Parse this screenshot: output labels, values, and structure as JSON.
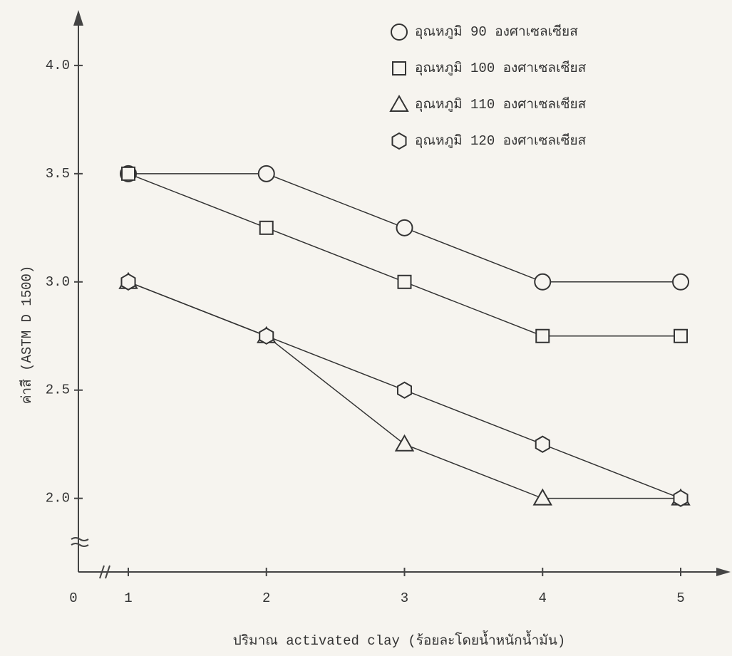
{
  "chart_data": {
    "type": "line",
    "x_label": "ปริมาณ activated clay (ร้อยละโดยน้ำหนักน้ำมัน)",
    "y_label": "ค่าสี (ASTM D 1500)",
    "x_origin_label": "0",
    "x": [
      1,
      2,
      3,
      4,
      5
    ],
    "xlim": [
      0.6,
      5.4
    ],
    "xticks": [
      1,
      2,
      3,
      4,
      5
    ],
    "ylim": [
      1.66,
      4.23
    ],
    "yticks": [
      {
        "value": 2,
        "label": "2.0"
      },
      2.5,
      {
        "value": 3,
        "label": "3.0"
      },
      3.5,
      {
        "value": 4,
        "label": "4.0"
      }
    ],
    "legend": "top-right",
    "series": [
      {
        "name": "อุณหภูมิ 90 องศาเซลเซียส",
        "color": "#333333",
        "marker": "circle",
        "values": [
          3.5,
          3.5,
          3.25,
          3.0,
          3.0
        ]
      },
      {
        "name": "อุณหภูมิ 100 องศาเซลเซียส",
        "color": "#333333",
        "marker": "square",
        "values": [
          3.5,
          3.25,
          3.0,
          2.75,
          2.75
        ]
      },
      {
        "name": "อุณหภูมิ 110 องศาเซลเซียส",
        "color": "#333333",
        "marker": "triangle",
        "values": [
          3.0,
          2.75,
          2.25,
          2.0,
          2.0
        ]
      },
      {
        "name": "อุณหภูมิ 120 องศาเซลเซียส",
        "color": "#333333",
        "marker": "hexagon",
        "values": [
          3.0,
          2.75,
          2.5,
          2.25,
          2.0
        ]
      }
    ]
  }
}
